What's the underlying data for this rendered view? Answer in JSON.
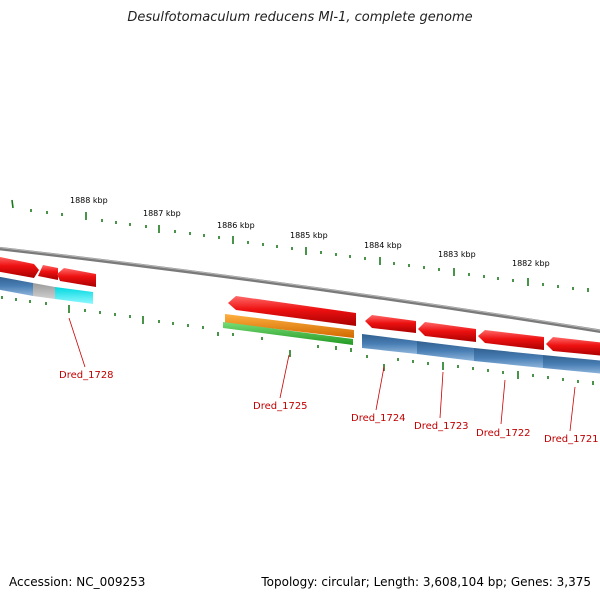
{
  "header": {
    "title": "Desulfotomaculum reducens MI-1, complete genome"
  },
  "footer": {
    "accession": "Accession: NC_009253",
    "summary": "Topology: circular; Length: 3,608,104 bp; Genes: 3,375"
  },
  "ruler": {
    "labels": [
      "1888 kbp",
      "1887 kbp",
      "1886 kbp",
      "1885 kbp",
      "1884 kbp",
      "1883 kbp",
      "1882 kbp"
    ]
  },
  "genes": [
    "Dred_1728",
    "Dred_1725",
    "Dred_1724",
    "Dred_1723",
    "Dred_1722",
    "Dred_1721"
  ],
  "colors": {
    "cds_red": "#ee1111",
    "rna_blue": "#4a7fb5",
    "grey_feature": "#b8b8b8",
    "cyan_feature": "#00f0f0",
    "orange_feature": "#f08c00",
    "green_feature": "#33bb33",
    "backbone": "#808080",
    "tick_green": "#1a7a1a",
    "label_red": "#c00000"
  }
}
